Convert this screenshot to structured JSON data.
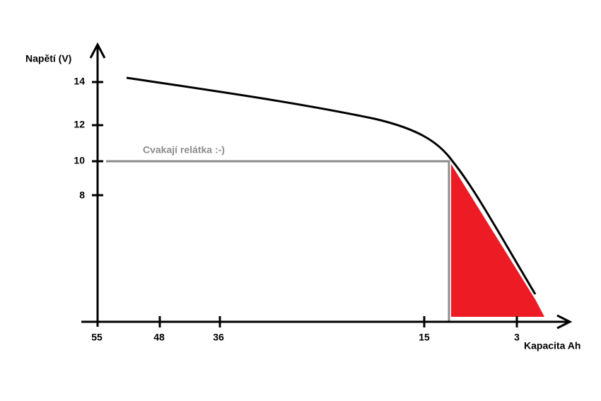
{
  "y_axis": {
    "label": "Napětí (V)",
    "ticks": [
      14,
      12,
      10,
      8
    ]
  },
  "x_axis": {
    "label": "Kapacita Ah",
    "ticks": [
      55,
      48,
      36,
      15,
      3
    ]
  },
  "annotation": "Cvakají relátka :-)"
}
